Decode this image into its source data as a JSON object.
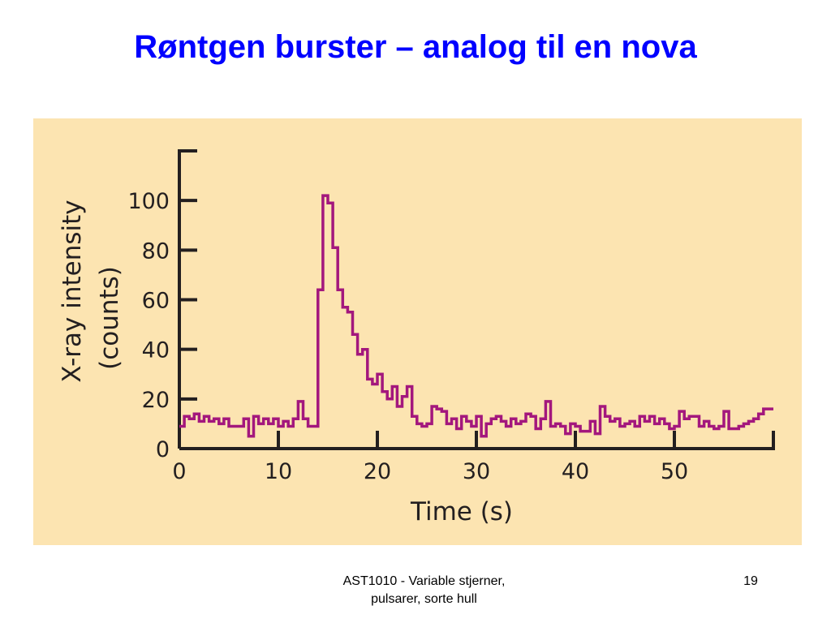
{
  "slide": {
    "title": "Røntgen burster – analog til en nova",
    "footer_line1": "AST1010 - Variable stjerner,",
    "footer_line2": "pulsarer, sorte hull",
    "page_number": "19"
  },
  "colors": {
    "title": "#0000ff",
    "panel_background": "#fce4b1",
    "axis": "#231f20",
    "series": "#a3177d"
  },
  "chart_data": {
    "type": "line",
    "step": true,
    "xlabel": "Time (s)",
    "ylabel_line1": "X-ray intensity",
    "ylabel_line2": "(counts)",
    "xlim": [
      0,
      60
    ],
    "ylim": [
      0,
      120
    ],
    "xticks": [
      0,
      10,
      20,
      30,
      40,
      50
    ],
    "yticks": [
      0,
      20,
      40,
      60,
      80,
      100
    ],
    "grid": false,
    "series": [
      {
        "x": [
          0,
          0.5,
          1.0,
          1.5,
          2.0,
          2.5,
          3.0,
          3.5,
          4.0,
          4.5,
          5.0,
          5.5,
          6.0,
          6.5,
          7.0,
          7.5,
          8.0,
          8.5,
          9.0,
          9.5,
          10.0,
          10.5,
          11.0,
          11.5,
          12.0,
          12.5,
          13.0,
          13.5,
          14.0,
          14.5,
          15.0,
          15.5,
          16.0,
          16.5,
          17.0,
          17.5,
          18.0,
          18.5,
          19.0,
          19.5,
          20.0,
          20.5,
          21.0,
          21.5,
          22.0,
          22.5,
          23.0,
          23.5,
          24.0,
          24.5,
          25.0,
          25.5,
          26.0,
          26.5,
          27.0,
          27.5,
          28.0,
          28.5,
          29.0,
          29.5,
          30.0,
          30.5,
          31.0,
          31.5,
          32.0,
          32.5,
          33.0,
          33.5,
          34.0,
          34.5,
          35.0,
          35.5,
          36.0,
          36.5,
          37.0,
          37.5,
          38.0,
          38.5,
          39.0,
          39.5,
          40.0,
          40.5,
          41.0,
          41.5,
          42.0,
          42.5,
          43.0,
          43.5,
          44.0,
          44.5,
          45.0,
          45.5,
          46.0,
          46.5,
          47.0,
          47.5,
          48.0,
          48.5,
          49.0,
          49.5,
          50.0,
          50.5,
          51.0,
          51.5,
          52.0,
          52.5,
          53.0,
          53.5,
          54.0,
          54.5,
          55.0,
          55.5,
          56.0,
          56.5,
          57.0,
          57.5,
          58.0,
          58.5,
          59.0,
          59.5
        ],
        "values": [
          9,
          13,
          12,
          14,
          11,
          13,
          11,
          12,
          10,
          12,
          9,
          9,
          9,
          12,
          5,
          13,
          10,
          12,
          10,
          12,
          9,
          11,
          9,
          12,
          19,
          12,
          9,
          9,
          64,
          102,
          99,
          81,
          64,
          57,
          55,
          46,
          38,
          40,
          28,
          26,
          30,
          23,
          20,
          25,
          17,
          21,
          25,
          13,
          10,
          9,
          10,
          17,
          16,
          15,
          10,
          12,
          8,
          13,
          11,
          9,
          13,
          5,
          10,
          12,
          13,
          11,
          9,
          12,
          10,
          11,
          14,
          13,
          8,
          12,
          19,
          9,
          10,
          9,
          6,
          10,
          9,
          7,
          7,
          11,
          6,
          17,
          13,
          11,
          12,
          9,
          10,
          11,
          9,
          13,
          11,
          13,
          10,
          12,
          10,
          8,
          9,
          15,
          12,
          13,
          13,
          9,
          11,
          9,
          8,
          9,
          15,
          8,
          8,
          9,
          10,
          11,
          12,
          14,
          16,
          16
        ]
      }
    ]
  }
}
